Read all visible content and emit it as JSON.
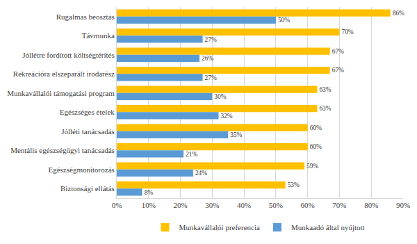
{
  "chart_data": {
    "type": "bar",
    "orientation": "horizontal",
    "categories": [
      "Rugalmas beosztás",
      "Távmunka",
      "Jóllétre fordított költségtérítés",
      "Rekreációra elszeparált irodarész",
      "Munkavállalói támogatási program",
      "Egészséges ételek",
      "Jólléti tanácsadás",
      "Mentális egészségügyi tanácsadás",
      "Egészségmonitorozás",
      "Biztonsági ellátás"
    ],
    "series": [
      {
        "name": "Munkavállalói preferencia",
        "color": "#FFC000",
        "values": [
          86,
          70,
          67,
          67,
          63,
          63,
          60,
          60,
          59,
          53
        ],
        "value_labels": [
          "86%",
          "70%",
          "67%",
          "67%",
          "63%",
          "63%",
          "60%",
          "60%",
          "59%",
          "53%"
        ]
      },
      {
        "name": "Munkaadó által nyújtott",
        "color": "#5B9BD5",
        "values": [
          50,
          27,
          26,
          27,
          30,
          32,
          35,
          21,
          24,
          8
        ],
        "value_labels": [
          "50%",
          "27%",
          "26%",
          "27%",
          "30%",
          "32%",
          "35%",
          "21%",
          "24%",
          "8%"
        ]
      }
    ],
    "xlim": [
      0,
      90
    ],
    "xticks": [
      {
        "value": 0,
        "label": "0%"
      },
      {
        "value": 10,
        "label": "10%"
      },
      {
        "value": 20,
        "label": "20%"
      },
      {
        "value": 30,
        "label": "30%"
      },
      {
        "value": 40,
        "label": "40%"
      },
      {
        "value": 50,
        "label": "50%"
      },
      {
        "value": 60,
        "label": "60%"
      },
      {
        "value": 70,
        "label": "70%"
      },
      {
        "value": 80,
        "label": "80%"
      },
      {
        "value": 90,
        "label": "90%"
      }
    ],
    "grid": true,
    "legend": "bottom",
    "data_labels": true
  }
}
